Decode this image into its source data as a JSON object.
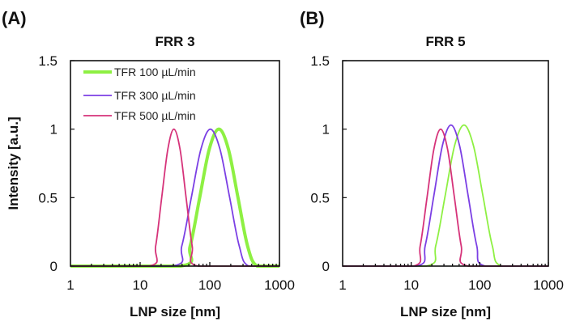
{
  "chart_data": [
    {
      "type": "line",
      "panel_label": "(A)",
      "title": "FRR 3",
      "xlabel": "LNP size [nm]",
      "ylabel": "Intensity [a.u.]",
      "xscale": "log",
      "xlim": [
        1,
        1000
      ],
      "ylim": [
        0,
        1.5
      ],
      "xticks": [
        "1",
        "10",
        "100",
        "1000"
      ],
      "yticks": [
        "0",
        "0.5",
        "1",
        "1.5"
      ],
      "grid": false,
      "legend": "top-left",
      "series": [
        {
          "name": "TFR 100 µL/min",
          "color": "#8ef043",
          "thick": true,
          "points": [
            [
              38,
              0
            ],
            [
              52.2,
              0.146
            ],
            [
              71.6,
              0.5
            ],
            [
              98.3,
              0.854
            ],
            [
              135,
              1.0
            ],
            [
              185,
              0.854
            ],
            [
              254,
              0.5
            ],
            [
              349,
              0.146
            ],
            [
              479,
              0
            ]
          ]
        },
        {
          "name": "TFR 300 µL/min",
          "color": "#7b3fe4",
          "thick": false,
          "points": [
            [
              28.8,
              0
            ],
            [
              39.6,
              0.146
            ],
            [
              54.3,
              0.5
            ],
            [
              74.6,
              0.854
            ],
            [
              102,
              1.0
            ],
            [
              140,
              0.854
            ],
            [
              193,
              0.5
            ],
            [
              265,
              0.146
            ],
            [
              363,
              0
            ]
          ]
        },
        {
          "name": "TFR 500 µL/min",
          "color": "#d6337a",
          "thick": false,
          "points": [
            [
              13.6,
              0
            ],
            [
              16.7,
              0.146
            ],
            [
              20.4,
              0.5
            ],
            [
              25.0,
              0.854
            ],
            [
              30.5,
              1.0
            ],
            [
              37.4,
              0.854
            ],
            [
              45.7,
              0.5
            ],
            [
              55.9,
              0.146
            ],
            [
              68.4,
              0
            ]
          ]
        }
      ]
    },
    {
      "type": "line",
      "panel_label": "(B)",
      "title": "FRR 5",
      "xlabel": "LNP size [nm]",
      "ylabel": "",
      "xscale": "log",
      "xlim": [
        1,
        1000
      ],
      "ylim": [
        0,
        1.5
      ],
      "xticks": [
        "1",
        "10",
        "100",
        "1000"
      ],
      "yticks": [
        "0",
        "0.5",
        "1",
        "1.5"
      ],
      "grid": false,
      "series": [
        {
          "color": "#8ef043",
          "thick": false,
          "points": [
            [
              16.6,
              0
            ],
            [
              22.8,
              0.15
            ],
            [
              31.3,
              0.515
            ],
            [
              42.9,
              0.88
            ],
            [
              58.9,
              1.03
            ],
            [
              80.8,
              0.88
            ],
            [
              111,
              0.515
            ],
            [
              152,
              0.15
            ],
            [
              209,
              0
            ]
          ]
        },
        {
          "color": "#7b3fe4",
          "thick": false,
          "points": [
            [
              12,
              0
            ],
            [
              16,
              0.15
            ],
            [
              21.4,
              0.515
            ],
            [
              28.5,
              0.88
            ],
            [
              38,
              1.03
            ],
            [
              50.7,
              0.88
            ],
            [
              67.6,
              0.515
            ],
            [
              90.2,
              0.15
            ],
            [
              120,
              0
            ]
          ]
        },
        {
          "color": "#d6337a",
          "thick": false,
          "points": [
            [
              10.7,
              0
            ],
            [
              13.5,
              0.146
            ],
            [
              17,
              0.5
            ],
            [
              21.4,
              0.854
            ],
            [
              26.9,
              1.0
            ],
            [
              33.9,
              0.854
            ],
            [
              42.7,
              0.5
            ],
            [
              53.7,
              0.146
            ],
            [
              67.6,
              0
            ]
          ]
        }
      ]
    }
  ]
}
